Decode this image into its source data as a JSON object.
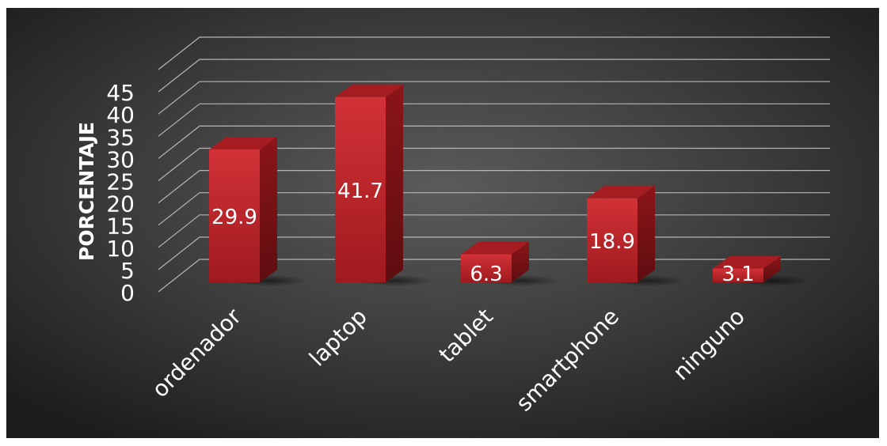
{
  "chart_data": {
    "type": "bar",
    "title": "",
    "xlabel": "",
    "ylabel": "PORCENTAJE",
    "categories": [
      "ordenador",
      "laptop",
      "tablet",
      "smartphone",
      "ninguno"
    ],
    "values": [
      29.9,
      41.7,
      6.3,
      18.9,
      3.1
    ],
    "value_labels": [
      "29.9",
      "41.7",
      "6.3",
      "18.9",
      "3.1"
    ],
    "y_ticks": [
      "0",
      "5",
      "10",
      "15",
      "20",
      "25",
      "30",
      "35",
      "40",
      "45"
    ],
    "ylim": [
      0,
      50
    ],
    "grid": true,
    "legend": "none",
    "style": "3d-column",
    "colors": {
      "bar_front": "#c8252a",
      "bar_side": "#7a1215",
      "bar_top": "#a51d21",
      "background": "#3a3a3a",
      "gridline": "#b5b5b5",
      "text": "#ffffff"
    }
  }
}
